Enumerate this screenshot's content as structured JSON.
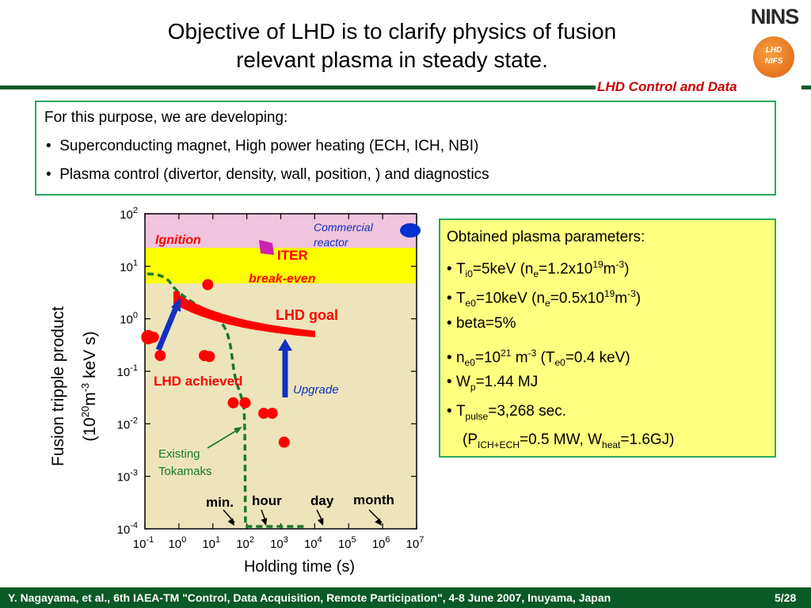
{
  "title": {
    "line1": "Objective of LHD is to clarify physics of fusion",
    "line2": "relevant plasma in steady state."
  },
  "logo": {
    "text": "NINS",
    "emblem_line1": "LHD",
    "emblem_line2": "NIFS"
  },
  "section_label": "LHD Control and Data",
  "purpose_box": {
    "intro": "For this purpose, we are developing:",
    "bullets": [
      "Superconducting magnet, High power heating (ECH, ICH, NBI)",
      "Plasma control (divertor, density, wall, position, ) and diagnostics"
    ]
  },
  "params_box": {
    "heading": "Obtained plasma parameters:",
    "r1": {
      "a": "T",
      "sub1": "i0",
      "b": "=5keV (n",
      "sub2": "e",
      "c": "=1.2x10",
      "sup1": "19",
      "d": "m",
      "sup2": "-3",
      "e": ")"
    },
    "r2": {
      "a": "T",
      "sub1": "e0",
      "b": "=10keV (n",
      "sub2": "e",
      "c": "=0.5x10",
      "sup1": "19",
      "d": "m",
      "sup2": "-3",
      "e": ")"
    },
    "r3": "beta=5%",
    "r4": {
      "a": "n",
      "sub1": "e0",
      "b": "=10",
      "sup1": "21",
      "c": " m",
      "sup2": "-3",
      "d": " (T",
      "sub2": "e0",
      "e": "=0.4 keV)"
    },
    "r5": {
      "a": "W",
      "sub1": "p",
      "b": "=1.44 MJ"
    },
    "r6": {
      "a": "T",
      "sub1": "pulse",
      "b": "=3,268 sec."
    },
    "r7": {
      "a": "(P",
      "sub1": "ICH+ECH",
      "b": "=0.5 MW, W",
      "sub2": "heat",
      "c": "=1.6GJ)"
    }
  },
  "chart_data": {
    "type": "scatter",
    "xlabel": "Holding time (s)",
    "ylabel_line1": "Fusion tripple product",
    "ylabel_base": "(10",
    "ylabel_sup1": "20",
    "ylabel_mid": "m",
    "ylabel_sup2": "-3",
    "ylabel_end": " keV s)",
    "x_scale": "log",
    "y_scale": "log",
    "xlim_exp": [
      -1,
      7
    ],
    "ylim_exp": [
      -4,
      2
    ],
    "x_tick_exps": [
      "-1",
      "0",
      "1",
      "2",
      "3",
      "4",
      "5",
      "6",
      "7"
    ],
    "y_tick_exps": [
      "2",
      "1",
      "0",
      "-1",
      "-2",
      "-3",
      "-4"
    ],
    "tick_base": "10",
    "region_labels": {
      "ignition": "Ignition",
      "iter": "ITER",
      "breakeven": "break-even",
      "commercial_line1": "Commercial",
      "commercial_line2": "reactor"
    },
    "annotations": {
      "lhd_goal": "LHD goal",
      "lhd_achieved": "LHD achieved",
      "upgrade": "Upgrade",
      "tokamaks_line1": "Existing",
      "tokamaks_line2": "Tokamaks",
      "min": "min.",
      "hour": "hour",
      "day": "day",
      "month": "month"
    },
    "lhd_achieved_points": [
      {
        "x": -0.9,
        "y": -0.35
      },
      {
        "x": -0.75,
        "y": -0.35
      },
      {
        "x": -0.55,
        "y": -0.7
      },
      {
        "x": 0.75,
        "y": -0.7
      },
      {
        "x": 0.9,
        "y": -0.72
      },
      {
        "x": 0.85,
        "y": 0.65
      },
      {
        "x": 1.6,
        "y": -1.6
      },
      {
        "x": 1.95,
        "y": -1.6
      },
      {
        "x": 2.5,
        "y": -1.8
      },
      {
        "x": 2.75,
        "y": -1.8
      },
      {
        "x": 3.1,
        "y": -2.35
      }
    ],
    "colors": {
      "ignition": "#f0c4dc",
      "breakeven": "#ffff00",
      "plot_bg": "#ede4bc",
      "lhd": "#ff0000",
      "tokamak_line": "#1a7a2a",
      "upgrade": "#1030c0",
      "iter": "#d020b0",
      "commercial": "#0030d0"
    }
  },
  "footer": {
    "citation": "Y. Nagayama, et al.,  6th IAEA-TM \"Control, Data Acquisition, Remote Participation\", 4-8 June 2007, Inuyama, Japan",
    "page": "5/28"
  }
}
